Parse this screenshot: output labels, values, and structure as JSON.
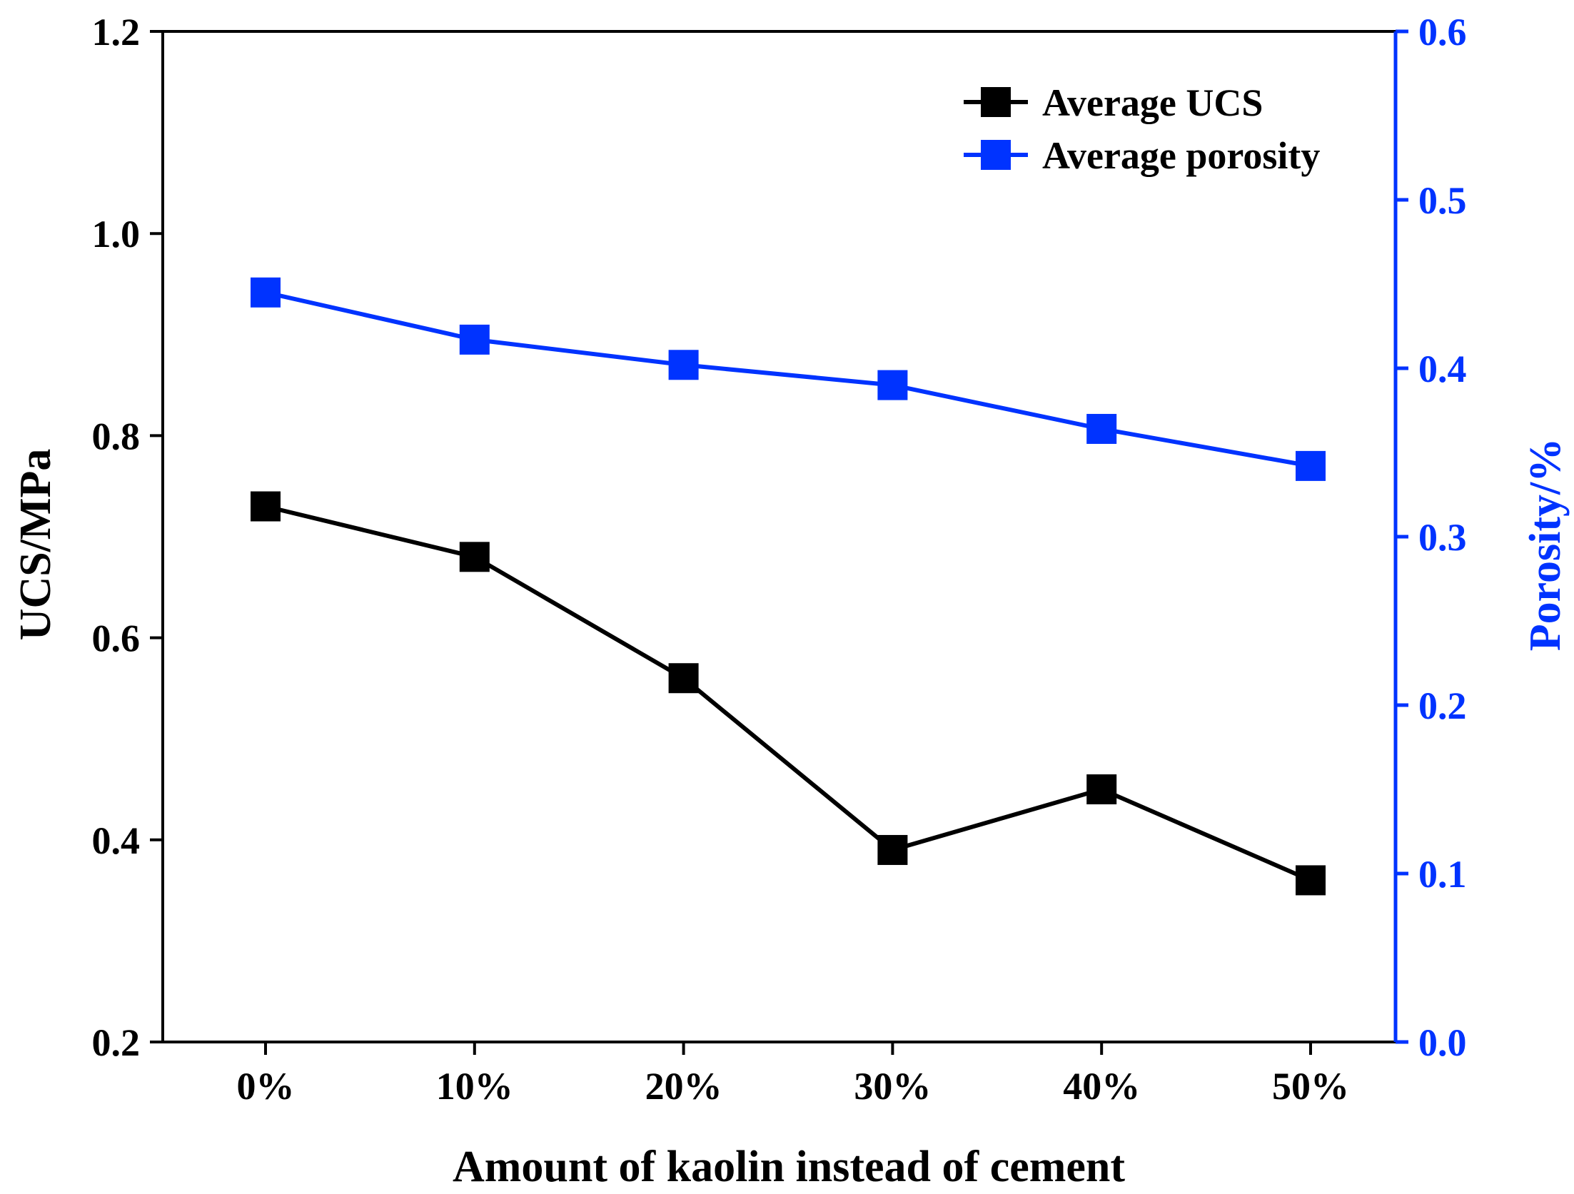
{
  "chart_data": {
    "type": "line",
    "categories": [
      "0%",
      "10%",
      "20%",
      "30%",
      "40%",
      "50%"
    ],
    "xlabel": "Amount of kaolin instead of cement",
    "left_axis": {
      "label": "UCS/MPa",
      "range": [
        0.2,
        1.2
      ],
      "ticks": [
        "0.2",
        "0.4",
        "0.6",
        "0.8",
        "1.0",
        "1.2"
      ],
      "color": "#000000"
    },
    "right_axis": {
      "label": "Porosity/%",
      "range": [
        0.0,
        0.6
      ],
      "ticks": [
        "0.0",
        "0.1",
        "0.2",
        "0.3",
        "0.4",
        "0.5",
        "0.6"
      ],
      "color": "#0033ff"
    },
    "series": [
      {
        "name": "Average UCS",
        "axis": "left",
        "color": "#000000",
        "marker": "square",
        "values": [
          0.73,
          0.68,
          0.56,
          0.39,
          0.45,
          0.36
        ]
      },
      {
        "name": "Average porosity",
        "axis": "right",
        "color": "#0033ff",
        "marker": "square",
        "values": [
          0.445,
          0.417,
          0.402,
          0.39,
          0.364,
          0.342
        ]
      }
    ],
    "legend": "top-right",
    "grid": false
  }
}
